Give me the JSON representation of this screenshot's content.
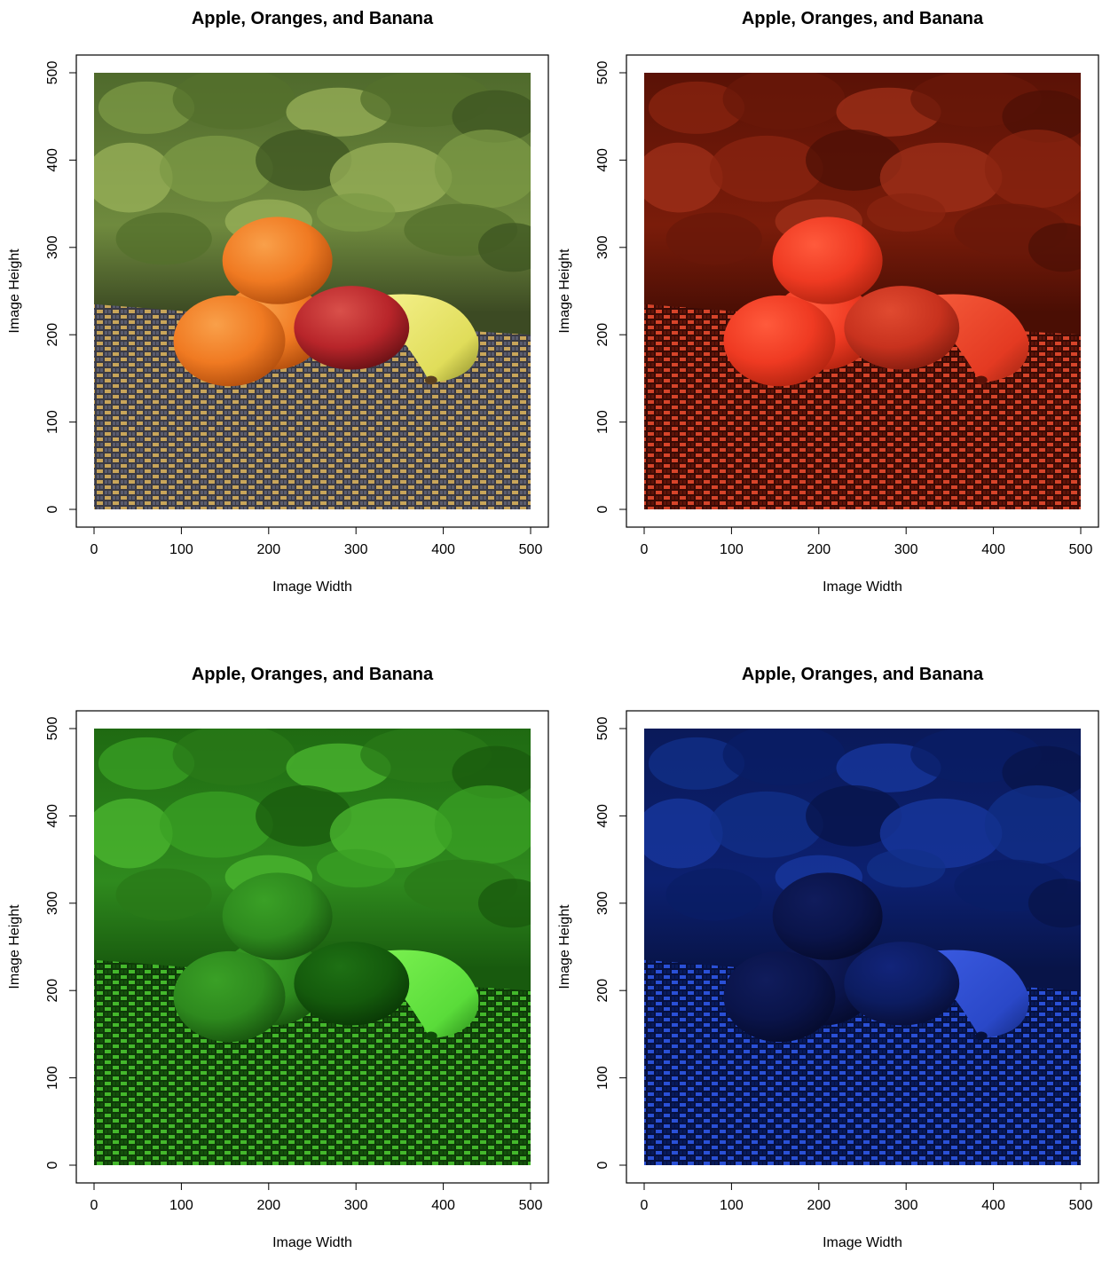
{
  "chart_data": [
    {
      "type": "image",
      "channel": "rgb",
      "title": "Apple, Oranges, and Banana",
      "xlabel": "Image Width",
      "ylabel": "Image Height",
      "xlim": [
        0,
        500
      ],
      "ylim": [
        0,
        500
      ],
      "xticks": [
        0,
        100,
        200,
        300,
        400,
        500
      ],
      "yticks": [
        0,
        100,
        200,
        300,
        400,
        500
      ],
      "tint": "#ffffff"
    },
    {
      "type": "image",
      "channel": "red",
      "title": "Apple, Oranges, and Banana",
      "xlabel": "Image Width",
      "ylabel": "Image Height",
      "xlim": [
        0,
        500
      ],
      "ylim": [
        0,
        500
      ],
      "xticks": [
        0,
        100,
        200,
        300,
        400,
        500
      ],
      "yticks": [
        0,
        100,
        200,
        300,
        400,
        500
      ],
      "tint": "#ff0000"
    },
    {
      "type": "image",
      "channel": "green",
      "title": "Apple, Oranges, and Banana",
      "xlabel": "Image Width",
      "ylabel": "Image Height",
      "xlim": [
        0,
        500
      ],
      "ylim": [
        0,
        500
      ],
      "xticks": [
        0,
        100,
        200,
        300,
        400,
        500
      ],
      "yticks": [
        0,
        100,
        200,
        300,
        400,
        500
      ],
      "tint": "#00ff00"
    },
    {
      "type": "image",
      "channel": "blue",
      "title": "Apple, Oranges, and Banana",
      "xlabel": "Image Width",
      "ylabel": "Image Height",
      "xlim": [
        0,
        500
      ],
      "ylim": [
        0,
        500
      ],
      "xticks": [
        0,
        100,
        200,
        300,
        400,
        500
      ],
      "yticks": [
        0,
        100,
        200,
        300,
        400,
        500
      ],
      "tint": "#0000ff"
    }
  ]
}
